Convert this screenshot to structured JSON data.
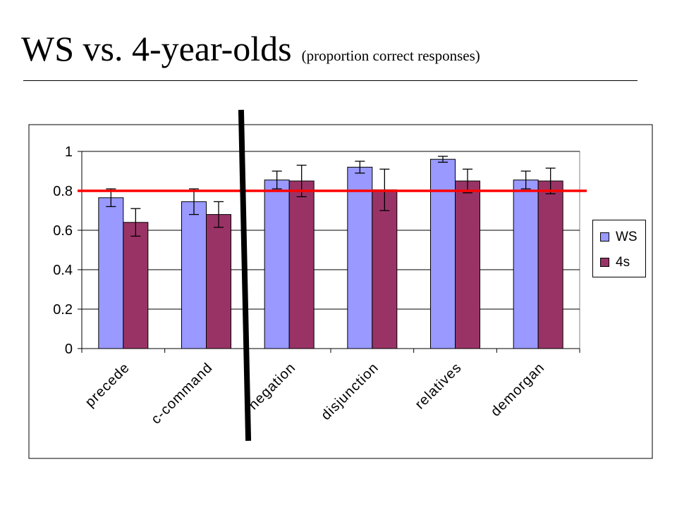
{
  "slide": {
    "title": "WS vs. 4-year-olds",
    "subtitle": "(proportion correct responses)"
  },
  "colors": {
    "ws": "#9999ff",
    "fours": "#993366",
    "reference_line": "#ff0000",
    "marker": "#000000",
    "plot_border": "#808080",
    "gridline": "#000000"
  },
  "chart_data": {
    "type": "bar",
    "categories": [
      "precede",
      "c-command",
      "negation",
      "disjunction",
      "relatives",
      "demorgan"
    ],
    "series": [
      {
        "name": "WS",
        "values": [
          0.765,
          0.745,
          0.855,
          0.92,
          0.96,
          0.855
        ],
        "error": [
          0.045,
          0.065,
          0.045,
          0.03,
          0.015,
          0.045
        ]
      },
      {
        "name": "4s",
        "values": [
          0.64,
          0.68,
          0.85,
          0.805,
          0.85,
          0.85
        ],
        "error": [
          0.07,
          0.065,
          0.08,
          0.105,
          0.06,
          0.065
        ]
      }
    ],
    "y_ticks": [
      0,
      0.2,
      0.4,
      0.6,
      0.8,
      1
    ],
    "y_tick_labels": [
      "0",
      "0.2",
      "0.4",
      "0.6",
      "0.8",
      "1"
    ],
    "ylim": [
      0,
      1
    ],
    "grid": true,
    "legend_position": "right",
    "reference_line_value": 0.8,
    "error_bars": true
  }
}
